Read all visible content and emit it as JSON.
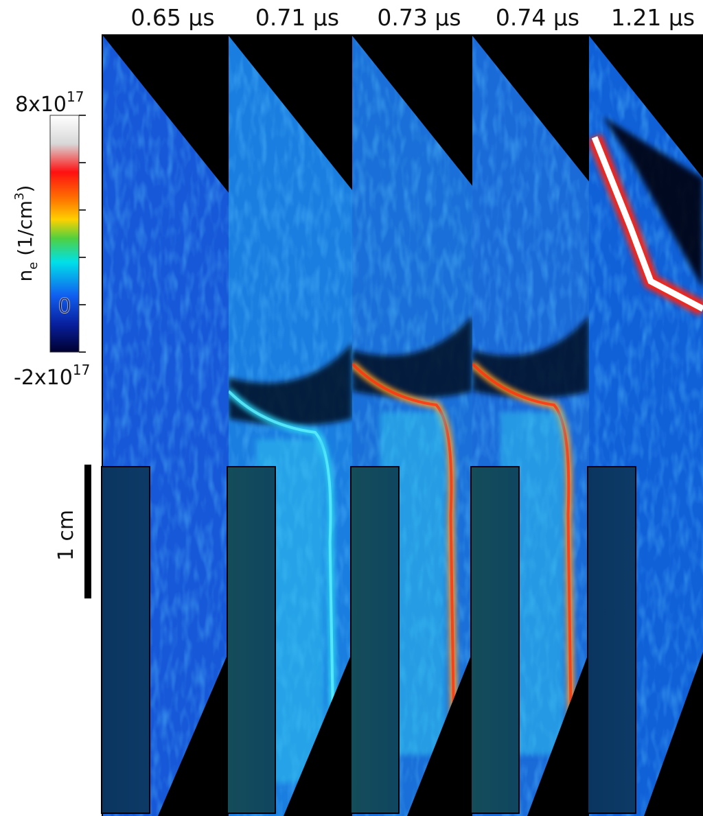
{
  "panels": [
    {
      "time": "0.65 µs"
    },
    {
      "time": "0.71 µs"
    },
    {
      "time": "0.73 µs"
    },
    {
      "time": "0.74 µs"
    },
    {
      "time": "1.21 µs"
    }
  ],
  "colorbar": {
    "max_label": {
      "base": "8x10",
      "exp": "17"
    },
    "min_label": {
      "base": "-2x10",
      "exp": "17"
    },
    "zero_label": "0",
    "label": {
      "symbol": "n",
      "subscript": "e",
      "unit": " (1/cm",
      "unit_exp": "3",
      "close": ")"
    }
  },
  "scale_bar": {
    "label": "1 cm"
  }
}
